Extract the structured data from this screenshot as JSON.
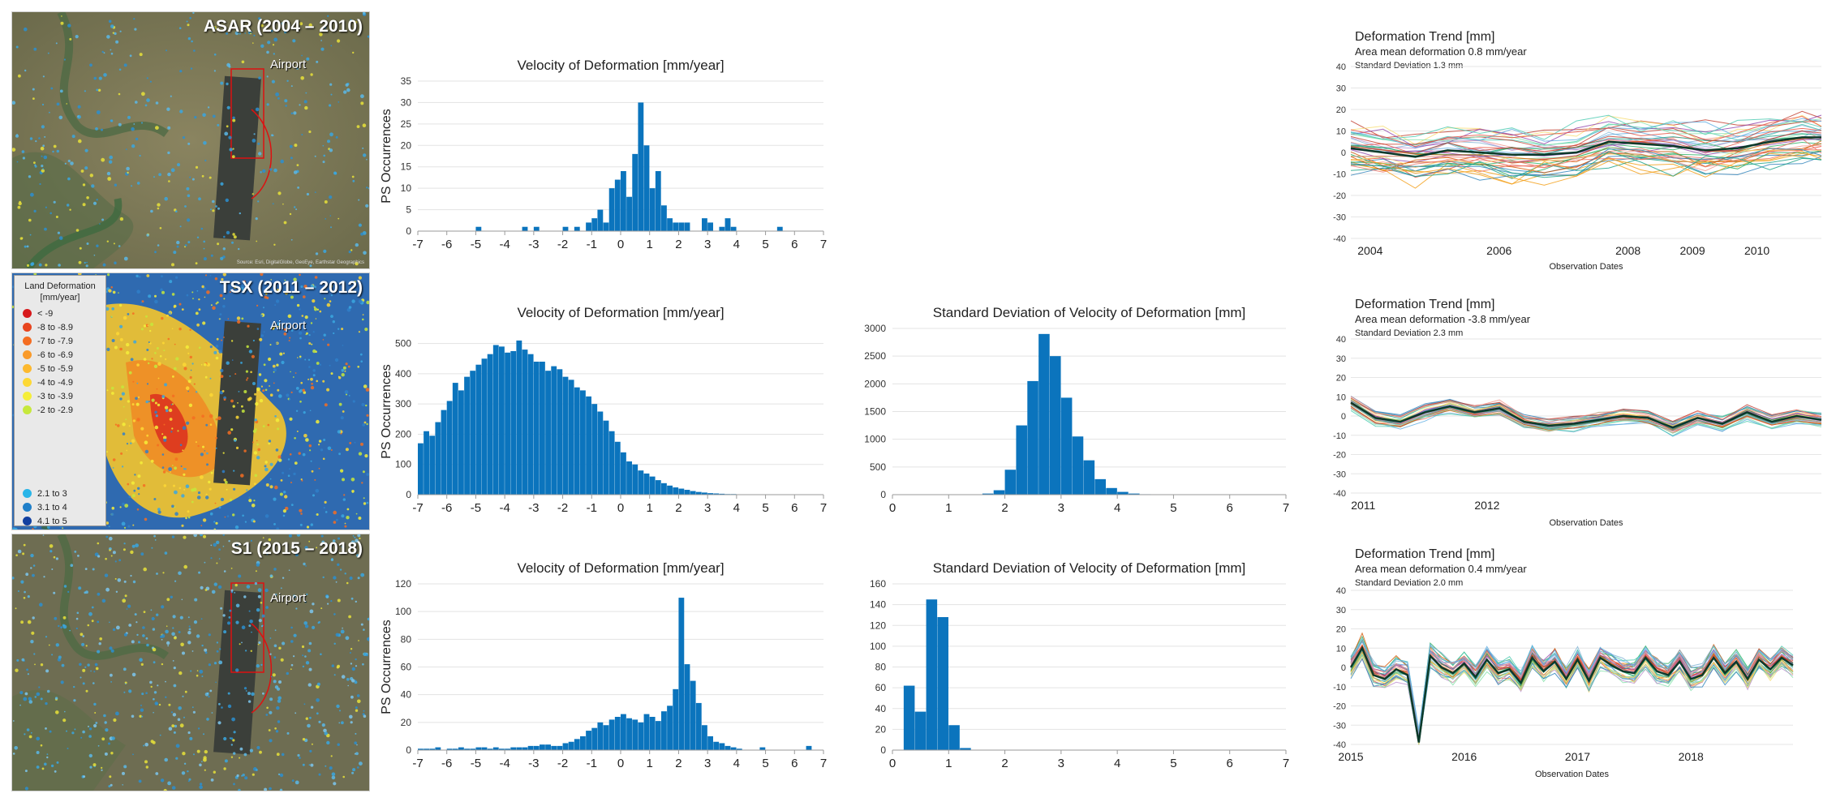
{
  "maps": [
    {
      "title": "ASAR (2004 – 2010)",
      "airport": "Airport",
      "credits": "Source: Esri, DigitalGlobe, GeoEye, Earthstar Geographics"
    },
    {
      "title": "TSX (2011 – 2012)",
      "airport": "Airport"
    },
    {
      "title": "S1 (2015 – 2018)",
      "airport": "Airport"
    }
  ],
  "legend": {
    "title_line1": "Land Deformation",
    "title_line2": "[mm/year]",
    "items": [
      {
        "label": "< -9",
        "color": "#d7191c"
      },
      {
        "label": "-8 to -8.9",
        "color": "#e8451e"
      },
      {
        "label": "-7 to -7.9",
        "color": "#f46d22"
      },
      {
        "label": "-6 to -6.9",
        "color": "#f99a2a"
      },
      {
        "label": "-5 to -5.9",
        "color": "#fdb92f"
      },
      {
        "label": "-4 to -4.9",
        "color": "#fdd835"
      },
      {
        "label": "-3 to -3.9",
        "color": "#f5ee3a"
      },
      {
        "label": "-2 to -2.9",
        "color": "#c6e83c"
      },
      {
        "label": "2.1 to 3",
        "color": "#29b5e8"
      },
      {
        "label": "3.1 to 4",
        "color": "#1f7fc9"
      },
      {
        "label": "4.1 to 5",
        "color": "#1240a0"
      }
    ]
  },
  "colors": {
    "bar": "#0b74bd",
    "mean_line": "#0b3a2a"
  },
  "chart_data": [
    {
      "id": "v1",
      "type": "bar",
      "title": "Velocity of Deformation [mm/year]",
      "ylabel": "PS Occurrences",
      "xlim": [
        -7,
        7
      ],
      "ylim": [
        0,
        35
      ],
      "xticks": [
        -7,
        -6,
        -5,
        -4,
        -3,
        -2,
        -1,
        0,
        1,
        2,
        3,
        4,
        5,
        6,
        7
      ],
      "yticks": [
        0,
        5,
        10,
        15,
        20,
        25,
        30,
        35
      ],
      "bins": {
        "start": -7,
        "width": 0.2,
        "counts": [
          0,
          0,
          0,
          0,
          0,
          0,
          0,
          0,
          0,
          0,
          1,
          0,
          0,
          0,
          0,
          0,
          0,
          0,
          1,
          0,
          1,
          0,
          0,
          0,
          0,
          1,
          0,
          1,
          0,
          2,
          3,
          5,
          2,
          10,
          12,
          14,
          8,
          18,
          30,
          20,
          10,
          14,
          6,
          3,
          2,
          2,
          2,
          0,
          0,
          3,
          2,
          0,
          1,
          3,
          1,
          0,
          0,
          0,
          0,
          0,
          0,
          0,
          1,
          0,
          0,
          0,
          0,
          0,
          0,
          0
        ]
      }
    },
    {
      "id": "v2",
      "type": "bar",
      "title": "Velocity of Deformation [mm/year]",
      "ylabel": "PS Occurrences",
      "xlim": [
        -7,
        7
      ],
      "ylim": [
        0,
        550
      ],
      "xticks": [
        -7,
        -6,
        -5,
        -4,
        -3,
        -2,
        -1,
        0,
        1,
        2,
        3,
        4,
        5,
        6,
        7
      ],
      "yticks": [
        0,
        100,
        200,
        300,
        400,
        500
      ],
      "bins": {
        "start": -7,
        "width": 0.2,
        "counts": [
          170,
          210,
          195,
          240,
          280,
          310,
          370,
          345,
          390,
          410,
          430,
          450,
          465,
          495,
          490,
          470,
          475,
          510,
          480,
          465,
          440,
          440,
          410,
          425,
          415,
          390,
          380,
          355,
          345,
          325,
          300,
          275,
          245,
          210,
          175,
          140,
          110,
          100,
          80,
          70,
          60,
          48,
          38,
          30,
          24,
          20,
          16,
          12,
          9,
          7,
          5,
          4,
          3,
          2,
          2,
          1,
          1,
          0,
          0,
          0,
          0,
          0,
          0,
          0,
          0,
          0,
          0,
          0,
          0,
          0
        ]
      }
    },
    {
      "id": "s2",
      "type": "bar",
      "title": "Standard Deviation of Velocity of Deformation [mm]",
      "ylabel": "",
      "xlim": [
        0,
        7
      ],
      "ylim": [
        0,
        3000
      ],
      "xticks": [
        0,
        1,
        2,
        3,
        4,
        5,
        6,
        7
      ],
      "yticks": [
        0,
        500,
        1000,
        1500,
        2000,
        2500,
        3000
      ],
      "bins": {
        "start": 0,
        "width": 0.2,
        "counts": [
          0,
          0,
          0,
          0,
          0,
          0,
          0,
          5,
          20,
          80,
          450,
          1250,
          2050,
          2900,
          2500,
          1750,
          1050,
          620,
          280,
          120,
          50,
          20,
          8,
          3,
          1,
          0,
          0,
          0,
          0,
          0,
          0,
          0,
          0,
          0,
          0
        ]
      }
    },
    {
      "id": "v3",
      "type": "bar",
      "title": "Velocity of Deformation [mm/year]",
      "ylabel": "PS Occurrences",
      "xlim": [
        -7,
        7
      ],
      "ylim": [
        0,
        120
      ],
      "xticks": [
        -7,
        -6,
        -5,
        -4,
        -3,
        -2,
        -1,
        0,
        1,
        2,
        3,
        4,
        5,
        6,
        7
      ],
      "yticks": [
        0,
        20,
        40,
        60,
        80,
        100,
        120
      ],
      "bins": {
        "start": -7,
        "width": 0.2,
        "counts": [
          1,
          1,
          1,
          2,
          0,
          1,
          1,
          2,
          1,
          1,
          2,
          2,
          1,
          2,
          1,
          1,
          2,
          2,
          2,
          3,
          3,
          4,
          4,
          3,
          3,
          5,
          6,
          8,
          10,
          14,
          16,
          20,
          18,
          22,
          24,
          26,
          23,
          22,
          20,
          26,
          24,
          21,
          28,
          32,
          44,
          110,
          62,
          50,
          34,
          18,
          10,
          6,
          5,
          3,
          2,
          1,
          0,
          0,
          0,
          2,
          0,
          0,
          0,
          0,
          0,
          0,
          0,
          3,
          0,
          0
        ]
      }
    },
    {
      "id": "s3",
      "type": "bar",
      "title": "Standard Deviation of Velocity of Deformation [mm]",
      "ylabel": "",
      "xlim": [
        0,
        7
      ],
      "ylim": [
        0,
        160
      ],
      "xticks": [
        0,
        1,
        2,
        3,
        4,
        5,
        6,
        7
      ],
      "yticks": [
        0,
        20,
        40,
        60,
        80,
        100,
        120,
        140,
        160
      ],
      "bins": {
        "start": 0,
        "width": 0.2,
        "counts": [
          0,
          62,
          37,
          145,
          128,
          24,
          2,
          0,
          0,
          0,
          0,
          0,
          0,
          0,
          0,
          0,
          0,
          0,
          0,
          0,
          0,
          0,
          0,
          0,
          0,
          0,
          0,
          0,
          0,
          0,
          0,
          0,
          0,
          0,
          0
        ]
      }
    },
    {
      "id": "t1",
      "type": "line",
      "title": "Deformation Trend [mm]",
      "subtitle": "Area mean deformation 0.8 mm/year",
      "subtitle2": "Standard Deviation 1.3 mm",
      "xlabel": "Observation Dates",
      "ylim": [
        -40,
        40
      ],
      "yticks": [
        -40,
        -30,
        -20,
        -10,
        0,
        10,
        20,
        30,
        40
      ],
      "xlim": [
        2003.7,
        2011.0
      ],
      "xticks": [
        2004,
        2006,
        2008,
        2009,
        2010
      ],
      "mean": {
        "x": [
          2003.7,
          2004.2,
          2004.7,
          2005.2,
          2005.7,
          2006.2,
          2006.7,
          2007.2,
          2007.7,
          2008.2,
          2008.7,
          2009.2,
          2009.7,
          2010.2,
          2010.7,
          2011.0
        ],
        "y": [
          2,
          0,
          -2,
          1,
          0,
          -1,
          -1,
          0,
          5,
          4,
          3,
          1,
          2,
          5,
          7,
          7
        ]
      },
      "spread": {
        "n": 40,
        "sd": 11,
        "seed": 11
      }
    },
    {
      "id": "t2",
      "type": "line",
      "title": "Deformation Trend [mm]",
      "subtitle": "Area mean deformation -3.8 mm/year",
      "subtitle2": "Standard Deviation 2.3 mm",
      "xlabel": "Observation Dates",
      "ylim": [
        -40,
        40
      ],
      "yticks": [
        -40,
        -30,
        -20,
        -10,
        0,
        10,
        20,
        30,
        40
      ],
      "xlim": [
        2010.9,
        2014.7
      ],
      "xticks": [
        2011,
        2012
      ],
      "mean": {
        "x": [
          2010.9,
          2011.1,
          2011.3,
          2011.5,
          2011.7,
          2011.9,
          2012.1,
          2012.3,
          2012.5,
          2012.7,
          2012.9,
          2013.1,
          2013.3,
          2013.5,
          2013.7,
          2013.9,
          2014.1,
          2014.3,
          2014.5,
          2014.7
        ],
        "y": [
          7,
          -1,
          -3,
          2,
          5,
          2,
          4,
          -3,
          -5,
          -4,
          -2,
          0,
          -1,
          -6,
          -1,
          -4,
          2,
          -3,
          0,
          -2
        ]
      },
      "spread": {
        "n": 30,
        "sd": 3,
        "seed": 7
      }
    },
    {
      "id": "t3",
      "type": "line",
      "title": "Deformation Trend [mm]",
      "subtitle": "Area mean deformation 0.4 mm/year",
      "subtitle2": "Standard Deviation 2.0 mm",
      "xlabel": "Observation Dates",
      "ylim": [
        -40,
        40
      ],
      "yticks": [
        -40,
        -30,
        -20,
        -10,
        0,
        10,
        20,
        30,
        40
      ],
      "xlim": [
        2015,
        2018.9
      ],
      "xticks": [
        2015,
        2016,
        2017,
        2018
      ],
      "mean": {
        "x": [
          2015,
          2015.1,
          2015.2,
          2015.3,
          2015.4,
          2015.5,
          2015.6,
          2015.7,
          2015.8,
          2015.9,
          2016.0,
          2016.1,
          2016.2,
          2016.3,
          2016.4,
          2016.5,
          2016.6,
          2016.7,
          2016.8,
          2016.9,
          2017.0,
          2017.1,
          2017.2,
          2017.3,
          2017.4,
          2017.5,
          2017.6,
          2017.7,
          2017.8,
          2017.9,
          2018.0,
          2018.1,
          2018.2,
          2018.3,
          2018.4,
          2018.5,
          2018.6,
          2018.7,
          2018.8,
          2018.9
        ],
        "y": [
          0,
          10,
          -4,
          -6,
          -1,
          -4,
          -39,
          6,
          0,
          -3,
          2,
          -5,
          4,
          -3,
          -1,
          -8,
          5,
          -2,
          3,
          -6,
          4,
          -7,
          5,
          1,
          -2,
          -3,
          5,
          -2,
          -4,
          3,
          -6,
          -4,
          5,
          -3,
          3,
          -6,
          4,
          -1,
          5,
          1
        ]
      },
      "spread": {
        "n": 30,
        "sd": 5,
        "seed": 3
      }
    }
  ]
}
